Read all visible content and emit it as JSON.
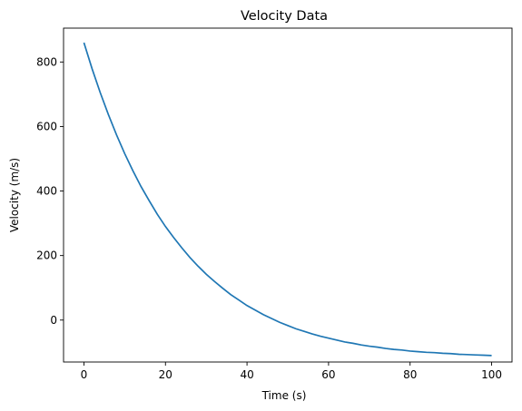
{
  "chart_data": {
    "type": "line",
    "title": "Velocity Data",
    "xlabel": "Time (s)",
    "ylabel": "Velocity (m/s)",
    "xlim": [
      -5,
      105
    ],
    "ylim": [
      -130,
      905
    ],
    "xticks": [
      0,
      20,
      40,
      60,
      80,
      100
    ],
    "yticks": [
      0,
      200,
      400,
      600,
      800
    ],
    "grid": false,
    "series": [
      {
        "color": "#1f77b4",
        "x": [
          0,
          2,
          4,
          6,
          8,
          10,
          12,
          14,
          16,
          18,
          20,
          22,
          24,
          26,
          28,
          30,
          32,
          34,
          36,
          38,
          40,
          42,
          44,
          46,
          48,
          50,
          52,
          54,
          56,
          58,
          60,
          62,
          64,
          66,
          68,
          70,
          72,
          74,
          76,
          78,
          80,
          82,
          84,
          86,
          88,
          90,
          92,
          94,
          96,
          98,
          100
        ],
        "y": [
          860,
          779,
          705,
          637,
          574,
          516,
          463,
          414,
          370,
          328,
          290,
          256,
          224,
          194,
          167,
          142,
          120,
          99,
          79,
          62,
          45,
          31,
          17,
          5,
          -7,
          -17,
          -27,
          -35,
          -43,
          -50,
          -56,
          -62,
          -68,
          -72,
          -77,
          -81,
          -84,
          -88,
          -91,
          -93,
          -96,
          -98,
          -100,
          -101,
          -103,
          -104,
          -106,
          -107,
          -108,
          -109,
          -110
        ]
      }
    ]
  }
}
